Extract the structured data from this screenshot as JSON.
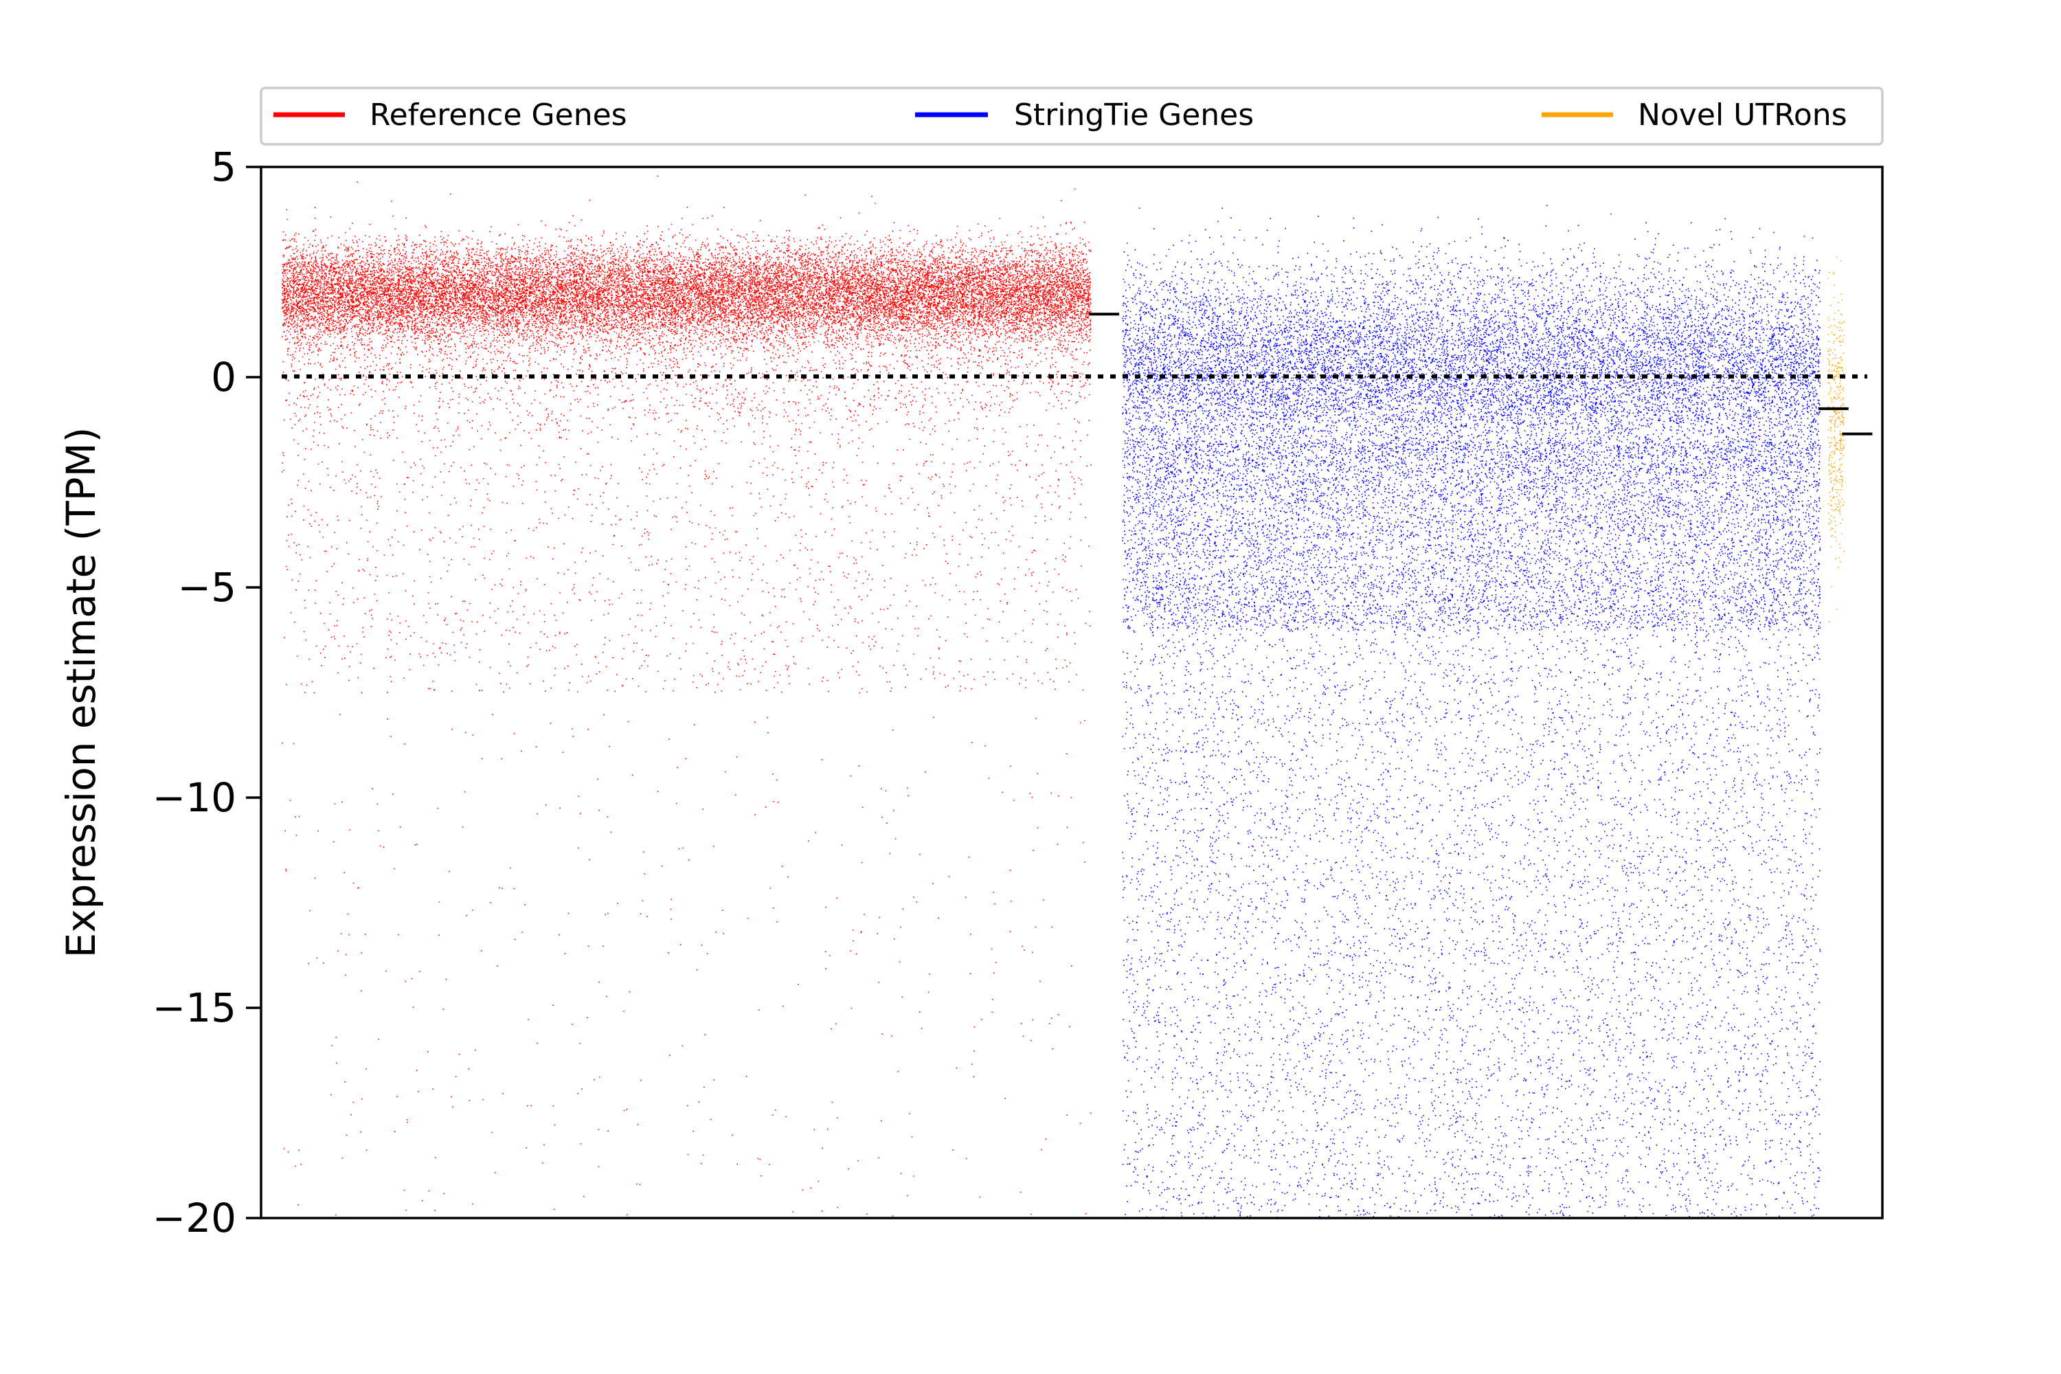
{
  "chart_data": {
    "type": "scatter",
    "title": "",
    "xlabel": "",
    "ylabel": "Expression estimate (TPM)",
    "ylim": [
      -20,
      5
    ],
    "yticks": [
      5,
      0,
      -5,
      -10,
      -15,
      -20
    ],
    "ytick_labels": [
      "5",
      "0",
      "−5",
      "−10",
      "−15",
      "−20"
    ],
    "reference_line": {
      "y": 0,
      "style": "dotted",
      "color": "#000000"
    },
    "grid": false,
    "legend_position": "top, above plot, horizontal",
    "series": [
      {
        "name": "Reference Genes",
        "color": "#ff0000",
        "x_range": [
          0,
          0.51
        ],
        "dense_band": [
          1.0,
          3.0
        ],
        "median": 1.5
      },
      {
        "name": "StringTie Genes",
        "color": "#0000ff",
        "x_range": [
          0.53,
          0.97
        ],
        "dense_band": [
          -3.0,
          2.0
        ],
        "median": -0.75
      },
      {
        "name": "Novel UTRons",
        "color": "#ffa500",
        "x_range": [
          0.975,
          0.985
        ],
        "dense_band": [
          -2.0,
          0.0
        ],
        "median": -1.35
      }
    ]
  }
}
